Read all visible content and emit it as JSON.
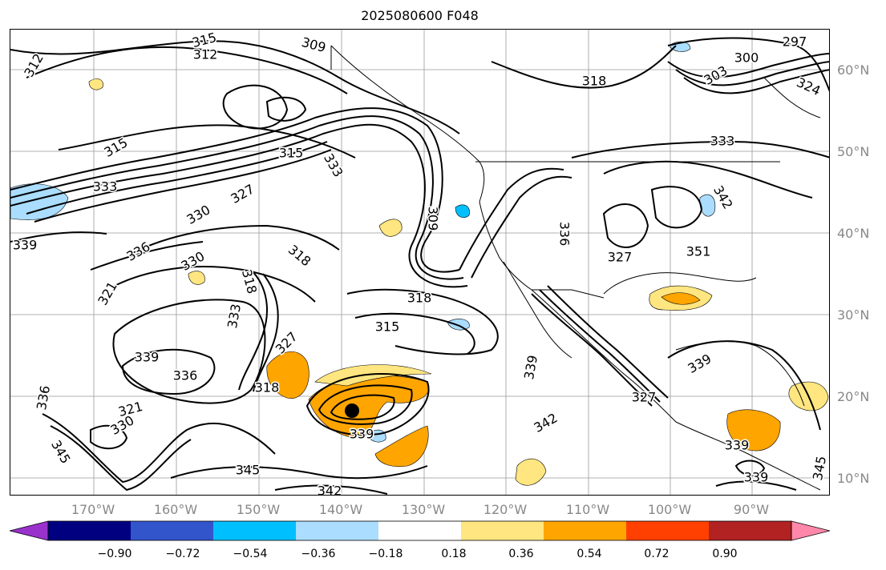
{
  "title": "2025080600 F048",
  "longitude_labels": [
    "170°W",
    "160°W",
    "150°W",
    "140°W",
    "130°W",
    "120°W",
    "110°W",
    "100°W",
    "90°W"
  ],
  "latitude_labels": [
    "60°N",
    "50°N",
    "40°N",
    "30°N",
    "20°N",
    "10°N"
  ],
  "contour_labels": [
    "315",
    "312",
    "309",
    "312",
    "297",
    "300",
    "318",
    "303",
    "324",
    "315",
    "315",
    "333",
    "333",
    "333",
    "327",
    "330",
    "339",
    "336",
    "318",
    "330",
    "321",
    "318",
    "318",
    "315",
    "333",
    "339",
    "336",
    "327",
    "318",
    "339",
    "339",
    "336",
    "321",
    "330",
    "345",
    "339",
    "345",
    "342",
    "342",
    "339",
    "345",
    "339",
    "351",
    "327",
    "342",
    "327",
    "336",
    "309"
  ],
  "colorbar": {
    "ticks": [
      "−0.90",
      "−0.72",
      "−0.54",
      "−0.36",
      "−0.18",
      "0.18",
      "0.36",
      "0.54",
      "0.72",
      "0.90"
    ],
    "colors": [
      "#9932cc",
      "#000080",
      "#3355cc",
      "#00bfff",
      "#aaddff",
      "#ffffff",
      "#ffe680",
      "#ffa500",
      "#ff4000",
      "#b22222",
      "#ff88aa"
    ]
  },
  "fill_colors": {
    "positive_low": "#ffe680",
    "positive_mid": "#ffa500",
    "negative_low": "#aaddff",
    "negative_mid": "#00bfff"
  },
  "storm_marker_color": "#000000"
}
